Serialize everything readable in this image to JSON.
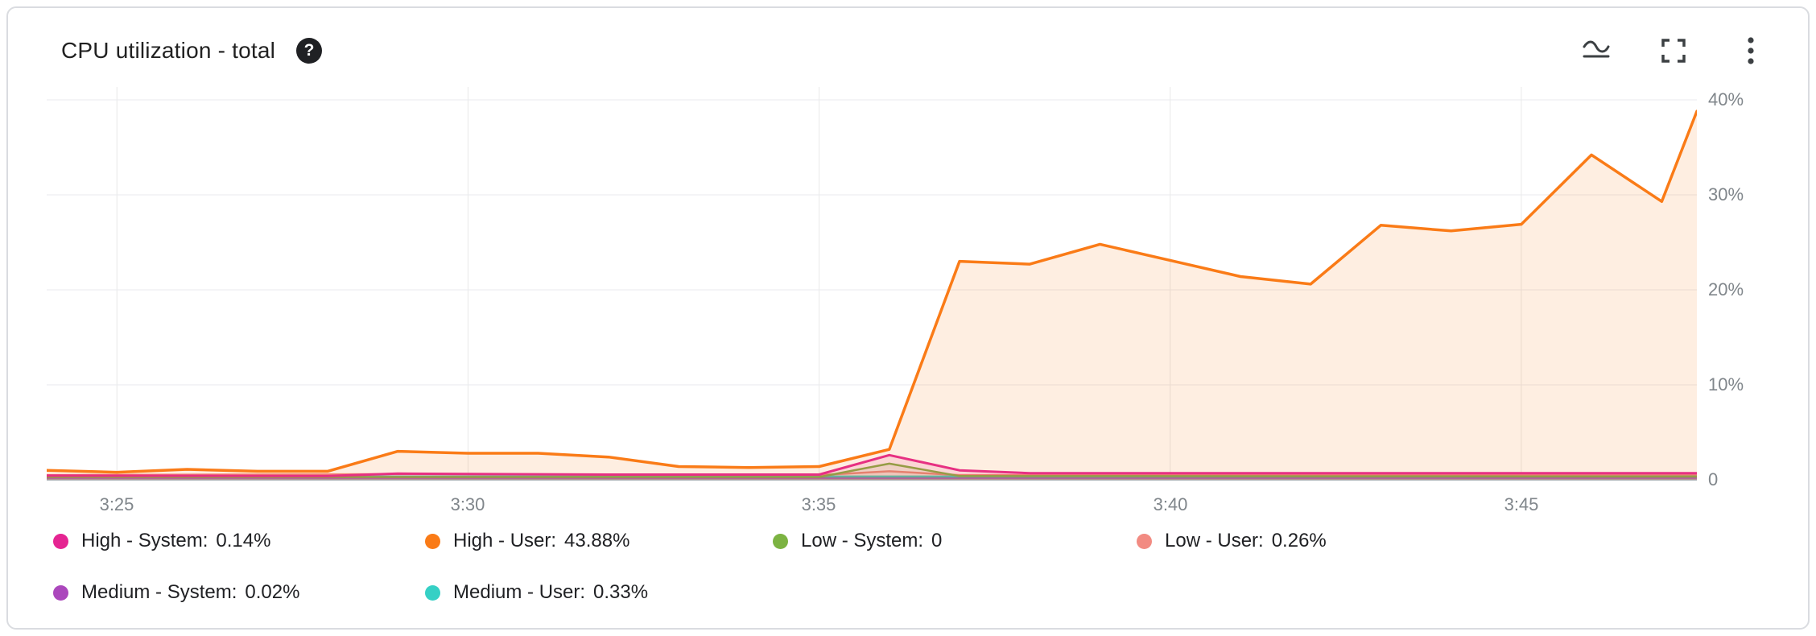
{
  "header": {
    "title": "CPU utilization - total",
    "help_glyph": "?",
    "toolbar": {
      "wave_tooltip": "chart style",
      "fullscreen_tooltip": "fullscreen",
      "more_tooltip": "more options"
    }
  },
  "chart_data": {
    "type": "area",
    "title": "CPU utilization - total",
    "x_axis": {
      "range": [
        24,
        47.5
      ],
      "unit": "time (3:24 - 3:47)",
      "ticks": [
        {
          "x": 25,
          "label": "3:25"
        },
        {
          "x": 30,
          "label": "3:30"
        },
        {
          "x": 35,
          "label": "3:35"
        },
        {
          "x": 40,
          "label": "3:40"
        },
        {
          "x": 45,
          "label": "3:45"
        }
      ]
    },
    "y_axis": {
      "max": 41.35,
      "unit": "%",
      "ticks": [
        {
          "v": 40,
          "label": "40%"
        },
        {
          "v": 30,
          "label": "30%"
        },
        {
          "v": 20,
          "label": "20%"
        },
        {
          "v": 10,
          "label": "10%"
        },
        {
          "v": 0,
          "label": "0"
        }
      ]
    },
    "style": {
      "grid": "#e8eaed",
      "zero_line": "#b0b4b8",
      "vgrid": "#e8e8e8"
    },
    "series": [
      {
        "name": "Low - User",
        "color": "#F28B82",
        "current": "0.26%",
        "width": 2.5,
        "fill_opacity": 0.1,
        "points": [
          [
            24,
            0.5
          ],
          [
            29,
            0.6
          ],
          [
            35,
            0.5
          ],
          [
            36,
            0.9
          ],
          [
            37,
            0.5
          ],
          [
            47.5,
            0.5
          ]
        ]
      },
      {
        "name": "Medium - System",
        "color": "#AB47BC",
        "current": "0.02%",
        "width": 2,
        "fill_opacity": 0.1,
        "points": [
          [
            24,
            0.18
          ],
          [
            47.5,
            0.18
          ]
        ]
      },
      {
        "name": "Medium - User",
        "color": "#35D0C5",
        "current": "0.33%",
        "width": 2.5,
        "fill_opacity": 0.1,
        "points": [
          [
            24,
            0.35
          ],
          [
            47.5,
            0.35
          ]
        ]
      },
      {
        "name": "Low - System",
        "color": "#7CB342",
        "current": "0",
        "width": 2.5,
        "fill_opacity": 0.12,
        "points": [
          [
            24,
            0.3
          ],
          [
            35,
            0.3
          ],
          [
            36,
            1.7
          ],
          [
            37,
            0.4
          ],
          [
            47.5,
            0.35
          ]
        ]
      },
      {
        "name": "High - System",
        "color": "#E52592",
        "current": "0.14%",
        "width": 3,
        "fill_opacity": 0.12,
        "points": [
          [
            24,
            0.45
          ],
          [
            28,
            0.4
          ],
          [
            29,
            0.65
          ],
          [
            32,
            0.55
          ],
          [
            35,
            0.55
          ],
          [
            36,
            2.6
          ],
          [
            37,
            1.0
          ],
          [
            38,
            0.7
          ],
          [
            47.5,
            0.7
          ]
        ]
      },
      {
        "name": "High - User",
        "color": "#FA7B17",
        "current": "43.88%",
        "width": 3.5,
        "fill_opacity": 0.13,
        "points": [
          [
            24,
            1.0
          ],
          [
            25,
            0.8
          ],
          [
            26,
            1.1
          ],
          [
            27,
            0.9
          ],
          [
            28,
            0.9
          ],
          [
            29,
            3.0
          ],
          [
            30,
            2.8
          ],
          [
            31,
            2.8
          ],
          [
            32,
            2.4
          ],
          [
            33,
            1.4
          ],
          [
            34,
            1.3
          ],
          [
            35,
            1.4
          ],
          [
            36,
            3.2
          ],
          [
            37,
            23.0
          ],
          [
            38,
            22.7
          ],
          [
            39,
            24.8
          ],
          [
            40,
            23.1
          ],
          [
            41,
            21.4
          ],
          [
            42,
            20.6
          ],
          [
            43,
            26.8
          ],
          [
            44,
            26.2
          ],
          [
            45,
            26.9
          ],
          [
            46,
            34.2
          ],
          [
            47,
            29.3
          ],
          [
            47.5,
            38.8
          ]
        ]
      }
    ]
  },
  "legend": {
    "items": [
      {
        "label": "High - System:",
        "value": "0.14%",
        "color": "#E52592"
      },
      {
        "label": "High - User:",
        "value": "43.88%",
        "color": "#FA7B17"
      },
      {
        "label": "Low - System:",
        "value": "0",
        "color": "#7CB342"
      },
      {
        "label": "Low - User:",
        "value": "0.26%",
        "color": "#F28B82"
      },
      {
        "label": "Medium - System:",
        "value": "0.02%",
        "color": "#AB47BC"
      },
      {
        "label": "Medium - User:",
        "value": "0.33%",
        "color": "#35D0C5"
      }
    ]
  }
}
